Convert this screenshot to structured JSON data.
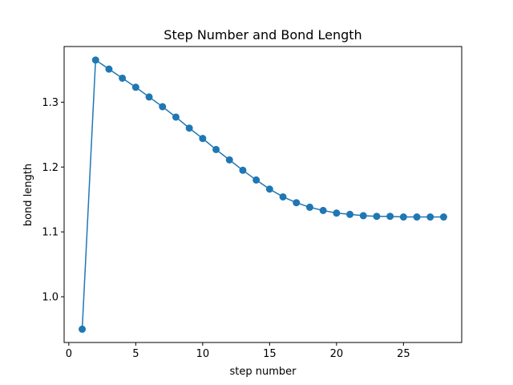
{
  "chart_data": {
    "type": "line",
    "title": "Step Number and Bond Length",
    "xlabel": "step number",
    "ylabel": "bond length",
    "xlim": [
      -0.35,
      29.35
    ],
    "ylim": [
      0.9295,
      1.3858
    ],
    "xticks": [
      0,
      5,
      10,
      15,
      20,
      25
    ],
    "yticks": [
      1.0,
      1.1,
      1.2,
      1.3
    ],
    "xtick_labels": [
      "0",
      "5",
      "10",
      "15",
      "20",
      "25"
    ],
    "ytick_labels": [
      "1.0",
      "1.1",
      "1.2",
      "1.3"
    ],
    "grid": false,
    "color": "#1f77b4",
    "marker": "circle",
    "x": [
      1,
      2,
      3,
      4,
      5,
      6,
      7,
      8,
      9,
      10,
      11,
      12,
      13,
      14,
      15,
      16,
      17,
      18,
      19,
      20,
      21,
      22,
      23,
      24,
      25,
      26,
      27,
      28
    ],
    "y": [
      0.95,
      1.365,
      1.351,
      1.337,
      1.323,
      1.308,
      1.293,
      1.277,
      1.26,
      1.244,
      1.227,
      1.211,
      1.195,
      1.18,
      1.166,
      1.154,
      1.145,
      1.138,
      1.133,
      1.129,
      1.127,
      1.125,
      1.124,
      1.124,
      1.123,
      1.123,
      1.123,
      1.123
    ]
  }
}
